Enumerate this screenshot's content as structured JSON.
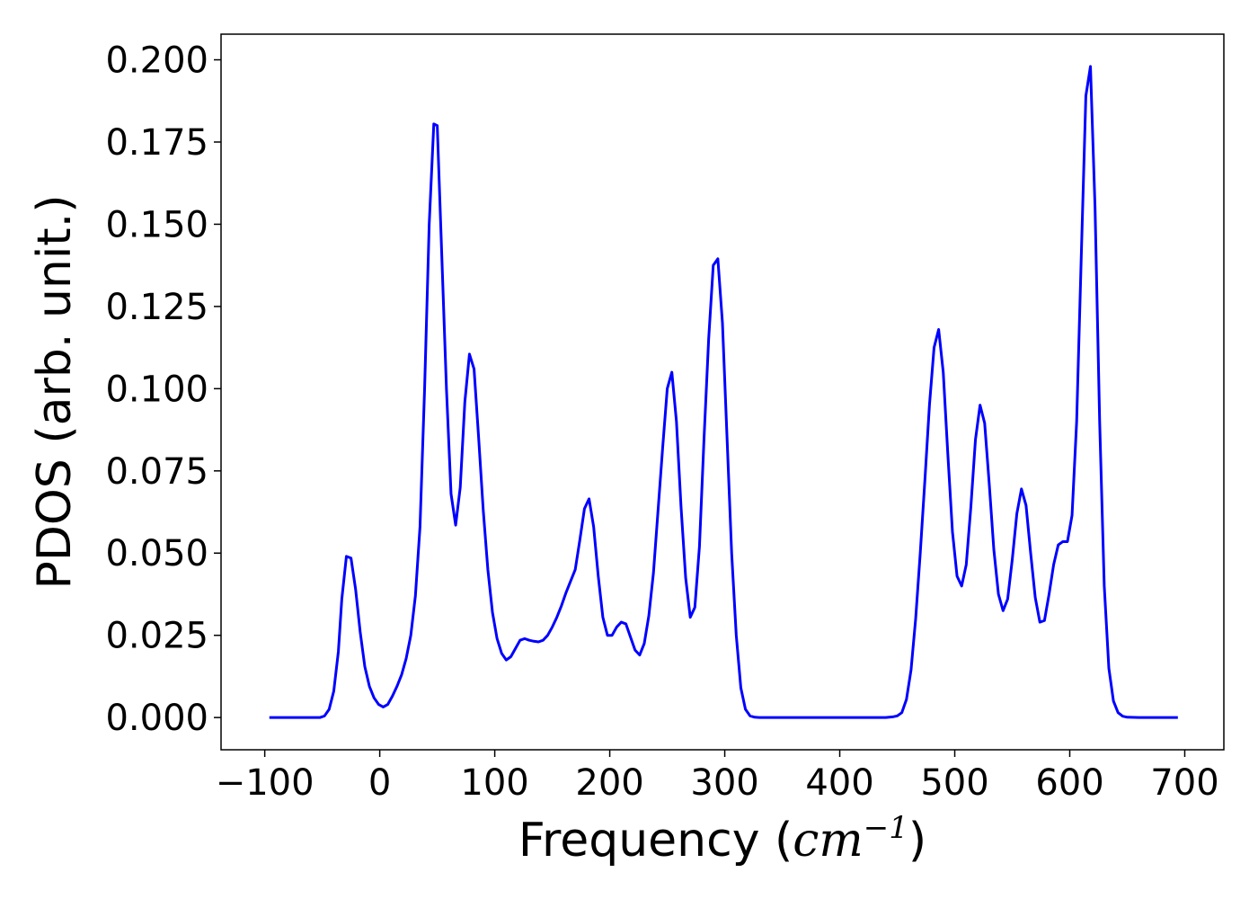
{
  "chart_data": {
    "type": "line",
    "xlabel": "Frequency (cm⁻¹)",
    "xlabel_parts": {
      "prefix": "Frequency (",
      "var": "cm",
      "sup": "−1",
      "suffix": ")"
    },
    "ylabel": "PDOS (arb. unit.)",
    "xlim": [
      -138,
      734
    ],
    "ylim": [
      -0.0098,
      0.2078
    ],
    "xticks": [
      -100,
      0,
      100,
      200,
      300,
      400,
      500,
      600,
      700
    ],
    "xtick_labels": [
      "−100",
      "0",
      "100",
      "200",
      "300",
      "400",
      "500",
      "600",
      "700"
    ],
    "yticks": [
      0.0,
      0.025,
      0.05,
      0.075,
      0.1,
      0.125,
      0.15,
      0.175,
      0.2
    ],
    "ytick_labels": [
      "0.000",
      "0.025",
      "0.050",
      "0.075",
      "0.100",
      "0.125",
      "0.150",
      "0.175",
      "0.200"
    ],
    "grid": false,
    "series": [
      {
        "color": "#0000ff",
        "x": [
          -96,
          -52,
          -48,
          -44,
          -40,
          -36,
          -33,
          -29,
          -25,
          -21,
          -17,
          -13,
          -9,
          -5,
          -1,
          3,
          7,
          11,
          15,
          19,
          23,
          27,
          31,
          35,
          39,
          43,
          47,
          50,
          54,
          58,
          62,
          66,
          70,
          74,
          78,
          82,
          86,
          90,
          94,
          98,
          102,
          106,
          110,
          114,
          118,
          122,
          126,
          130,
          134,
          138,
          142,
          146,
          150,
          154,
          158,
          162,
          166,
          170,
          174,
          178,
          182,
          186,
          190,
          194,
          198,
          202,
          206,
          210,
          214,
          218,
          222,
          226,
          230,
          234,
          238,
          242,
          246,
          250,
          254,
          258,
          262,
          266,
          270,
          274,
          278,
          282,
          286,
          290,
          294,
          298,
          302,
          306,
          310,
          314,
          318,
          322,
          326,
          330,
          340,
          360,
          400,
          440,
          446,
          450,
          454,
          458,
          462,
          466,
          470,
          474,
          478,
          482,
          486,
          490,
          494,
          498,
          502,
          506,
          510,
          514,
          518,
          522,
          526,
          530,
          534,
          538,
          542,
          546,
          550,
          554,
          558,
          562,
          566,
          570,
          574,
          578,
          582,
          586,
          590,
          594,
          598,
          602,
          606,
          610,
          614,
          618,
          622,
          626,
          630,
          634,
          638,
          642,
          646,
          650,
          660,
          694
        ],
        "y": [
          0.0,
          0.0,
          0.0005,
          0.0025,
          0.008,
          0.02,
          0.036,
          0.049,
          0.0485,
          0.039,
          0.026,
          0.0155,
          0.0095,
          0.006,
          0.004,
          0.0032,
          0.004,
          0.0065,
          0.0095,
          0.013,
          0.018,
          0.025,
          0.037,
          0.058,
          0.1,
          0.15,
          0.1805,
          0.18,
          0.14,
          0.1,
          0.068,
          0.0585,
          0.07,
          0.096,
          0.1105,
          0.106,
          0.085,
          0.063,
          0.045,
          0.032,
          0.024,
          0.0195,
          0.0175,
          0.0185,
          0.021,
          0.0235,
          0.024,
          0.0235,
          0.0232,
          0.023,
          0.0235,
          0.025,
          0.0275,
          0.0305,
          0.034,
          0.038,
          0.0415,
          0.045,
          0.054,
          0.0635,
          0.0665,
          0.058,
          0.043,
          0.0305,
          0.025,
          0.025,
          0.0275,
          0.029,
          0.0285,
          0.0245,
          0.0205,
          0.019,
          0.0225,
          0.031,
          0.044,
          0.063,
          0.082,
          0.1,
          0.105,
          0.09,
          0.064,
          0.0425,
          0.0305,
          0.0335,
          0.052,
          0.085,
          0.115,
          0.1375,
          0.1395,
          0.12,
          0.085,
          0.05,
          0.025,
          0.009,
          0.0025,
          0.0005,
          0.0001,
          0.0,
          0.0,
          0.0,
          0.0,
          0.0,
          0.0002,
          0.0005,
          0.0015,
          0.0055,
          0.0145,
          0.03,
          0.05,
          0.072,
          0.095,
          0.1125,
          0.118,
          0.105,
          0.08,
          0.0565,
          0.043,
          0.04,
          0.0465,
          0.064,
          0.0845,
          0.095,
          0.0895,
          0.071,
          0.051,
          0.0375,
          0.0325,
          0.036,
          0.048,
          0.062,
          0.0695,
          0.0645,
          0.05,
          0.0365,
          0.029,
          0.0295,
          0.0375,
          0.0465,
          0.0525,
          0.0535,
          0.0535,
          0.0615,
          0.09,
          0.14,
          0.189,
          0.198,
          0.155,
          0.09,
          0.04,
          0.015,
          0.005,
          0.0015,
          0.0004,
          0.0001,
          0.0,
          0.0
        ]
      }
    ]
  }
}
